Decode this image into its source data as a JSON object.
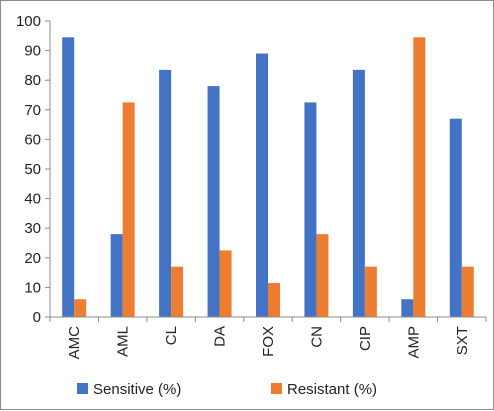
{
  "chart_data": {
    "type": "bar",
    "categories": [
      "AMC",
      "AML",
      "CL",
      "DA",
      "FOX",
      "CN",
      "CIP",
      "AMP",
      "SXT"
    ],
    "series": [
      {
        "name": "Sensitive (%)",
        "color": "#4472c4",
        "values": [
          94.5,
          28,
          83.5,
          78,
          89,
          72.5,
          83.5,
          6,
          67
        ]
      },
      {
        "name": "Resistant (%)",
        "color": "#ed7d31",
        "values": [
          6,
          72.5,
          17,
          22.5,
          11.5,
          28,
          17,
          94.5,
          17
        ]
      }
    ],
    "ylim": [
      0,
      100
    ],
    "yticks": [
      "0",
      "10",
      "20",
      "30",
      "40",
      "50",
      "60",
      "70",
      "80",
      "90",
      "100"
    ],
    "grid": false,
    "legend_position": "bottom"
  }
}
